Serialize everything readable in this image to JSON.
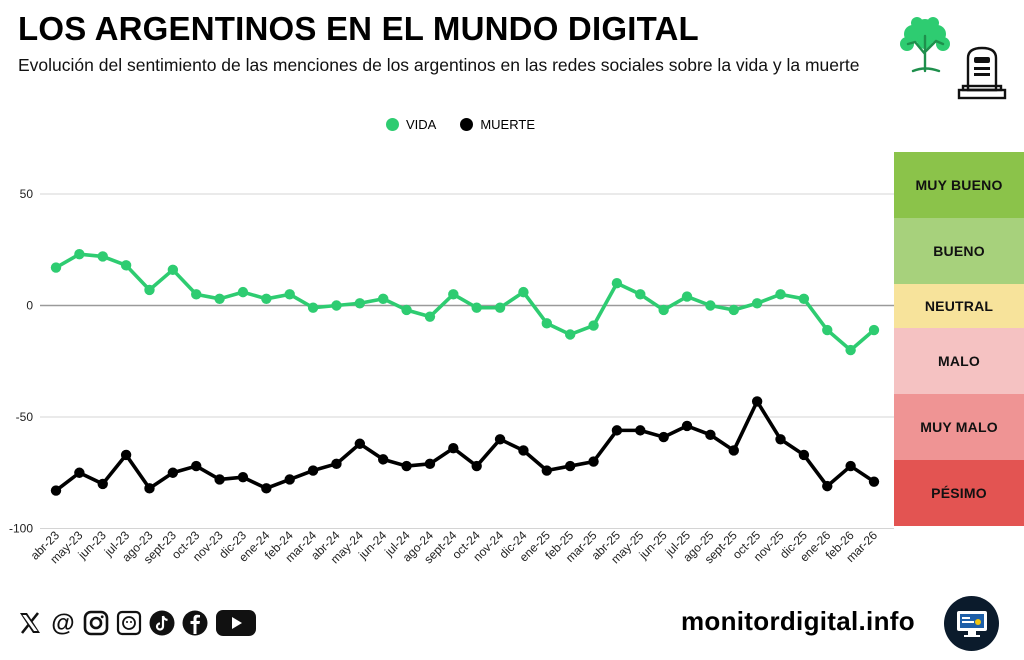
{
  "header": {
    "title": "LOS ARGENTINOS EN EL MUNDO DIGITAL",
    "subtitle": "Evolución del sentimiento de las menciones de los argentinos en las redes sociales sobre la vida y la muerte"
  },
  "legend": [
    {
      "label": "VIDA",
      "color": "#2ecc71"
    },
    {
      "label": "MUERTE",
      "color": "#000000"
    }
  ],
  "bands": [
    {
      "label": "MUY BUENO",
      "color": "#8bc34a"
    },
    {
      "label": "BUENO",
      "color": "#a7d17c"
    },
    {
      "label": "NEUTRAL",
      "color": "#f7e39b"
    },
    {
      "label": "MALO",
      "color": "#f5c2c2"
    },
    {
      "label": "MUY MALO",
      "color": "#ef9494"
    },
    {
      "label": "PÉSIMO",
      "color": "#e35452"
    }
  ],
  "chart_data": {
    "type": "line",
    "title": "LOS ARGENTINOS EN EL MUNDO DIGITAL",
    "xlabel": "",
    "ylabel": "",
    "ylim": [
      -100,
      60
    ],
    "yticks": [
      50,
      0,
      -50,
      -100
    ],
    "grid": true,
    "categories": [
      "abr-23",
      "may-23",
      "jun-23",
      "jul-23",
      "ago-23",
      "sept-23",
      "oct-23",
      "nov-23",
      "dic-23",
      "ene-24",
      "feb-24",
      "mar-24",
      "abr-24",
      "may-24",
      "jun-24",
      "jul-24",
      "ago-24",
      "sept-24",
      "oct-24",
      "nov-24",
      "dic-24",
      "ene-25",
      "feb-25",
      "mar-25",
      "abr-25",
      "may-25",
      "jun-25",
      "jul-25",
      "ago-25",
      "sept-25",
      "oct-25",
      "nov-25",
      "dic-25",
      "ene-26",
      "feb-26",
      "mar-26"
    ],
    "series": [
      {
        "name": "VIDA",
        "color": "#2ecc71",
        "values": [
          17,
          23,
          22,
          18,
          7,
          16,
          5,
          3,
          6,
          3,
          5,
          -1,
          0,
          1,
          3,
          -2,
          -5,
          5,
          -1,
          -1,
          6,
          -8,
          -13,
          -9,
          10,
          5,
          -2,
          4,
          0,
          -2,
          1,
          5,
          3,
          -11,
          -20,
          -11
        ]
      },
      {
        "name": "MUERTE",
        "color": "#000000",
        "values": [
          -83,
          -75,
          -80,
          -67,
          -82,
          -75,
          -72,
          -78,
          -77,
          -82,
          -78,
          -74,
          -71,
          -62,
          -69,
          -72,
          -71,
          -64,
          -72,
          -60,
          -65,
          -74,
          -72,
          -70,
          -56,
          -56,
          -59,
          -54,
          -58,
          -65,
          -43,
          -60,
          -67,
          -81,
          -72,
          -79
        ]
      }
    ]
  },
  "footer": {
    "site": "monitordigital.info",
    "social_icons": [
      "x-icon",
      "threads-icon",
      "instagram-icon",
      "wikipedia-icon",
      "tiktok-icon",
      "facebook-icon",
      "youtube-icon"
    ]
  }
}
